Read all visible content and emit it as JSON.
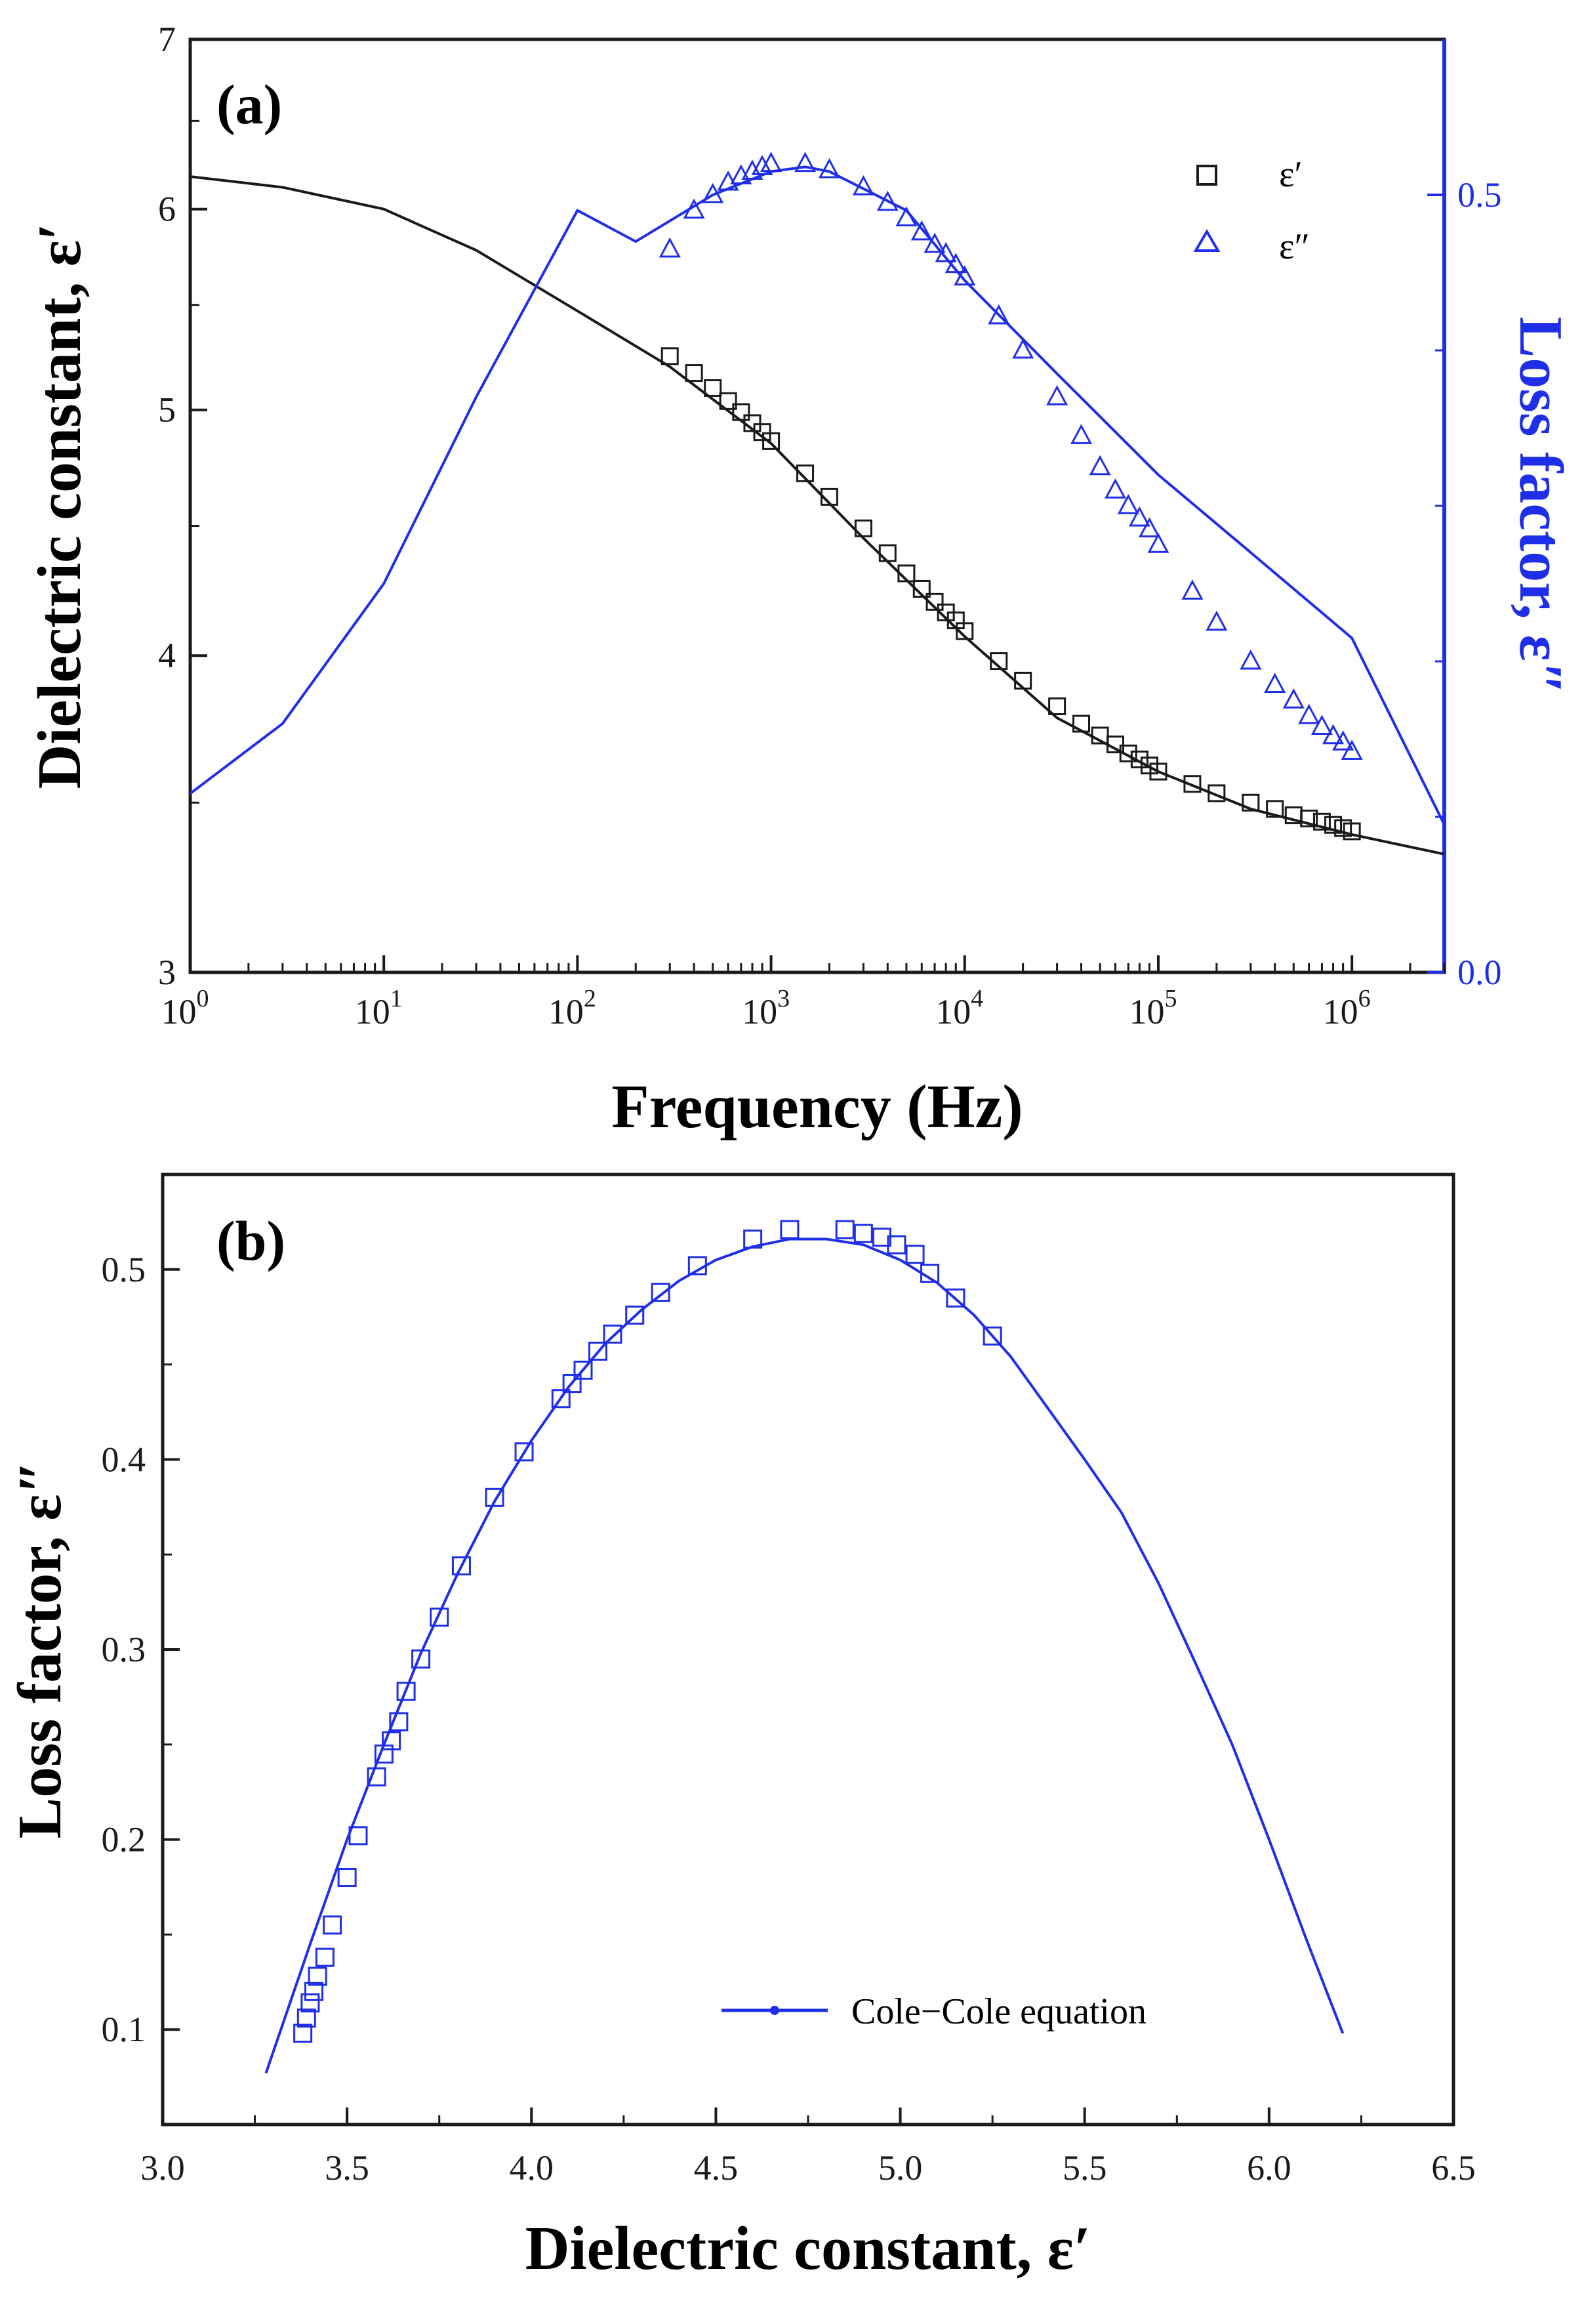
{
  "colors": {
    "black": "#1a1a1a",
    "blue": "#1f2fe8"
  },
  "chart_data": [
    {
      "type": "line",
      "panel_label": "(a)",
      "xlabel": "Frequency (Hz)",
      "ylabel_left": "Dielectric constant, ε′",
      "ylabel_right": "Loss factor, ε″",
      "x_scale": "log",
      "xlim": [
        1,
        3000000
      ],
      "ylim_left": [
        3,
        7
      ],
      "ylim_left_scale": "log",
      "ylim_right": [
        0.0,
        0.6
      ],
      "x_ticks": [
        {
          "base": "10",
          "exp": "0"
        },
        {
          "base": "10",
          "exp": "1"
        },
        {
          "base": "10",
          "exp": "2"
        },
        {
          "base": "10",
          "exp": "3"
        },
        {
          "base": "10",
          "exp": "4"
        },
        {
          "base": "10",
          "exp": "5"
        },
        {
          "base": "10",
          "exp": "6"
        }
      ],
      "y_left_ticks": [
        "3",
        "4",
        "5",
        "6",
        "7"
      ],
      "y_right_ticks": [
        "0.0",
        "0.5"
      ],
      "legend": [
        {
          "marker": "square",
          "label": "ε′",
          "color": "#1a1a1a"
        },
        {
          "marker": "triangle",
          "label": "ε″",
          "color": "#1f2fe8"
        }
      ],
      "fit_eps_prime": {
        "x": [
          1,
          3,
          10,
          30,
          100,
          300,
          1000,
          3000,
          10000,
          30000,
          100000,
          300000,
          1000000,
          3000000
        ],
        "y": [
          6.18,
          6.12,
          6.0,
          5.78,
          5.47,
          5.2,
          4.85,
          4.45,
          4.07,
          3.78,
          3.6,
          3.48,
          3.4,
          3.34
        ]
      },
      "fit_eps_double_prime": {
        "x": [
          1,
          3,
          10,
          30,
          100,
          200,
          500,
          1000,
          1500,
          2000,
          5000,
          10000,
          30000,
          100000,
          300000,
          1000000,
          3000000
        ],
        "y": [
          0.115,
          0.16,
          0.25,
          0.37,
          0.49,
          0.47,
          0.5,
          0.515,
          0.518,
          0.515,
          0.49,
          0.445,
          0.385,
          0.32,
          0.27,
          0.215,
          0.095
        ]
      },
      "eps_prime_points": {
        "x": [
          300,
          400,
          500,
          600,
          700,
          800,
          900,
          1000,
          1500,
          2000,
          3000,
          4000,
          5000,
          6000,
          7000,
          8000,
          9000,
          10000,
          15000,
          20000,
          30000,
          40000,
          50000,
          60000,
          70000,
          80000,
          90000,
          100000,
          150000,
          200000,
          300000,
          400000,
          500000,
          600000,
          700000,
          800000,
          900000,
          1000000
        ],
        "y": [
          5.25,
          5.17,
          5.1,
          5.04,
          4.99,
          4.94,
          4.9,
          4.86,
          4.72,
          4.62,
          4.49,
          4.39,
          4.31,
          4.25,
          4.2,
          4.16,
          4.13,
          4.09,
          3.98,
          3.91,
          3.82,
          3.76,
          3.72,
          3.69,
          3.66,
          3.64,
          3.62,
          3.6,
          3.56,
          3.53,
          3.5,
          3.48,
          3.46,
          3.45,
          3.44,
          3.43,
          3.42,
          3.41
        ]
      },
      "eps_double_prime_points": {
        "x": [
          300,
          400,
          500,
          600,
          700,
          800,
          900,
          1000,
          1500,
          2000,
          3000,
          4000,
          5000,
          6000,
          7000,
          8000,
          9000,
          10000,
          15000,
          20000,
          30000,
          40000,
          50000,
          60000,
          70000,
          80000,
          90000,
          100000,
          150000,
          200000,
          300000,
          400000,
          500000,
          600000,
          700000,
          800000,
          900000,
          1000000
        ],
        "y": [
          0.465,
          0.49,
          0.5,
          0.508,
          0.512,
          0.515,
          0.518,
          0.52,
          0.52,
          0.516,
          0.505,
          0.495,
          0.485,
          0.476,
          0.468,
          0.462,
          0.455,
          0.447,
          0.422,
          0.4,
          0.37,
          0.345,
          0.325,
          0.31,
          0.3,
          0.292,
          0.285,
          0.275,
          0.245,
          0.225,
          0.2,
          0.185,
          0.175,
          0.165,
          0.158,
          0.152,
          0.148,
          0.142
        ]
      }
    },
    {
      "type": "scatter",
      "panel_label": "(b)",
      "xlabel": "Dielectric constant, ε′",
      "ylabel": "Loss factor, ε″",
      "xlim": [
        3.0,
        6.5
      ],
      "ylim": [
        0.05,
        0.55
      ],
      "x_ticks": [
        "3.0",
        "3.5",
        "4.0",
        "4.5",
        "5.0",
        "5.5",
        "6.0",
        "6.5"
      ],
      "y_ticks": [
        "0.1",
        "0.2",
        "0.3",
        "0.4",
        "0.5"
      ],
      "legend": [
        {
          "marker": "line-dot",
          "label": "Cole−Cole equation",
          "color": "#1f2fe8"
        }
      ],
      "cole_cole_fit": {
        "x": [
          3.28,
          3.4,
          3.5,
          3.6,
          3.7,
          3.8,
          3.9,
          4.0,
          4.1,
          4.2,
          4.3,
          4.4,
          4.5,
          4.6,
          4.7,
          4.8,
          4.9,
          5.0,
          5.1,
          5.2,
          5.3,
          5.4,
          5.5,
          5.6,
          5.7,
          5.8,
          5.9,
          6.0,
          6.1,
          6.2
        ],
        "y": [
          0.077,
          0.145,
          0.2,
          0.25,
          0.298,
          0.34,
          0.378,
          0.41,
          0.438,
          0.461,
          0.479,
          0.494,
          0.505,
          0.512,
          0.516,
          0.516,
          0.513,
          0.505,
          0.493,
          0.476,
          0.454,
          0.427,
          0.4,
          0.372,
          0.335,
          0.293,
          0.25,
          0.2,
          0.148,
          0.098
        ]
      },
      "points": {
        "x": [
          3.38,
          3.39,
          3.4,
          3.41,
          3.42,
          3.44,
          3.46,
          3.5,
          3.53,
          3.58,
          3.6,
          3.62,
          3.64,
          3.66,
          3.7,
          3.75,
          3.81,
          3.9,
          3.98,
          4.08,
          4.11,
          4.14,
          4.18,
          4.22,
          4.28,
          4.35,
          4.45,
          4.6,
          4.7,
          4.85,
          4.9,
          4.95,
          4.99,
          5.04,
          5.08,
          5.15,
          5.25
        ],
        "y": [
          0.098,
          0.106,
          0.114,
          0.12,
          0.128,
          0.138,
          0.155,
          0.18,
          0.202,
          0.233,
          0.245,
          0.252,
          0.262,
          0.278,
          0.295,
          0.317,
          0.344,
          0.38,
          0.404,
          0.432,
          0.44,
          0.447,
          0.457,
          0.466,
          0.476,
          0.488,
          0.502,
          0.516,
          0.521,
          0.521,
          0.519,
          0.517,
          0.513,
          0.508,
          0.498,
          0.485,
          0.465
        ]
      }
    }
  ]
}
